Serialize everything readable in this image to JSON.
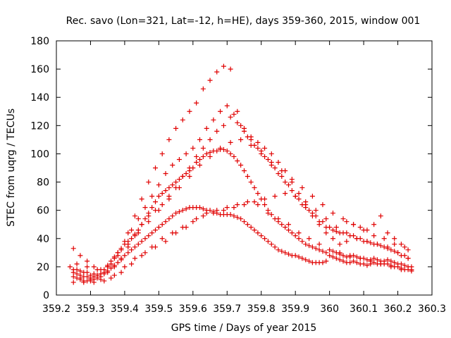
{
  "chart_data": {
    "type": "scatter",
    "title": "Rec. savo (Lon=321, Lat=-12, h=HE), days 359-360, 2015, window 001",
    "xlabel": "GPS time / Days of year 2015",
    "ylabel": "STEC from uqrg / TECUs",
    "xlim": [
      359.2,
      360.3
    ],
    "ylim": [
      0,
      180
    ],
    "xticks": [
      "359.2",
      "359.3",
      "359.4",
      "359.5",
      "359.6",
      "359.7",
      "359.8",
      "359.9",
      "360",
      "360.1",
      "360.2",
      "360.3"
    ],
    "yticks": [
      "0",
      "20",
      "40",
      "60",
      "80",
      "100",
      "120",
      "140",
      "160",
      "180"
    ],
    "grid": false,
    "legend": "none",
    "marker": "+",
    "color": "#e00000",
    "series": [
      {
        "x": [
          359.25,
          359.26,
          359.27,
          359.28,
          359.29,
          359.3,
          359.31,
          359.32,
          359.33,
          359.34,
          359.35,
          359.36,
          359.37,
          359.38,
          359.39,
          359.4,
          359.41,
          359.42,
          359.43,
          359.44,
          359.45,
          359.46,
          359.47,
          359.48,
          359.49,
          359.5,
          359.51,
          359.52,
          359.53,
          359.54,
          359.55,
          359.56,
          359.57,
          359.58,
          359.59,
          359.6,
          359.61,
          359.62,
          359.63,
          359.64,
          359.65,
          359.66,
          359.67,
          359.68,
          359.69,
          359.7,
          359.71,
          359.72,
          359.73,
          359.74,
          359.75,
          359.76,
          359.77,
          359.78,
          359.79,
          359.8,
          359.81,
          359.82,
          359.83,
          359.84,
          359.85,
          359.86,
          359.87,
          359.88,
          359.89,
          359.9,
          359.91,
          359.92,
          359.93,
          359.94,
          359.95,
          359.96,
          359.97,
          359.98,
          359.99,
          360.0,
          360.01,
          360.02,
          360.03,
          360.04,
          360.05,
          360.06,
          360.07,
          360.08,
          360.09,
          360.1,
          360.11,
          360.12,
          360.13,
          360.14,
          360.15,
          360.16,
          360.17,
          360.18,
          360.19,
          360.2,
          360.21,
          360.22,
          360.23,
          360.24
        ],
        "y": [
          13,
          12,
          11,
          10,
          10,
          10,
          11,
          12,
          13,
          15,
          17,
          19,
          21,
          23,
          25,
          28,
          30,
          32,
          34,
          36,
          38,
          40,
          42,
          44,
          46,
          48,
          50,
          52,
          54,
          56,
          58,
          59,
          60,
          61,
          62,
          62,
          62,
          62,
          61,
          60,
          60,
          59,
          58,
          57,
          57,
          57,
          57,
          56,
          55,
          54,
          52,
          50,
          48,
          46,
          44,
          42,
          40,
          38,
          36,
          34,
          32,
          31,
          30,
          29,
          28,
          28,
          27,
          26,
          25,
          24,
          23,
          23,
          23,
          23,
          24,
          28,
          27,
          26,
          25,
          24,
          23,
          23,
          24,
          23,
          22,
          22,
          21,
          22,
          23,
          22,
          22,
          22,
          22,
          21,
          20,
          20,
          19,
          18,
          18,
          18
        ]
      },
      {
        "x": [
          359.25,
          359.26,
          359.27,
          359.28,
          359.29,
          359.3,
          359.31,
          359.32,
          359.33,
          359.34,
          359.35,
          359.36,
          359.37,
          359.38,
          359.39,
          359.4,
          359.41,
          359.42,
          359.43,
          359.44,
          359.45,
          359.46,
          359.47,
          359.48,
          359.49,
          359.5,
          359.51,
          359.52,
          359.53,
          359.54,
          359.55,
          359.56,
          359.57,
          359.58,
          359.59,
          359.6,
          359.61,
          359.62,
          359.63,
          359.64,
          359.65,
          359.66,
          359.67,
          359.68,
          359.69,
          359.7,
          359.71,
          359.72,
          359.73,
          359.74,
          359.75,
          359.76,
          359.77,
          359.78,
          359.79,
          359.8,
          359.81,
          359.82,
          359.83,
          359.84,
          359.85,
          359.86,
          359.87,
          359.88,
          359.89,
          359.9,
          359.91,
          359.92,
          359.93,
          359.94,
          359.95,
          359.96,
          359.97,
          359.98,
          359.99,
          360.01,
          360.02,
          360.03,
          360.04,
          360.05,
          360.06,
          360.07,
          360.08,
          360.09,
          360.1,
          360.11,
          360.12,
          360.13,
          360.14,
          360.15,
          360.16,
          360.17,
          360.18,
          360.19,
          360.2,
          360.21,
          360.22,
          360.23,
          360.24
        ],
        "y": [
          16,
          15,
          14,
          13,
          13,
          12,
          13,
          14,
          15,
          18,
          21,
          24,
          27,
          30,
          33,
          36,
          38,
          40,
          43,
          46,
          50,
          54,
          58,
          62,
          66,
          70,
          72,
          74,
          76,
          78,
          80,
          82,
          84,
          86,
          88,
          90,
          94,
          96,
          98,
          100,
          101,
          102,
          102,
          103,
          103,
          102,
          100,
          98,
          95,
          92,
          88,
          84,
          80,
          76,
          72,
          68,
          64,
          60,
          57,
          54,
          52,
          50,
          48,
          46,
          44,
          42,
          40,
          38,
          36,
          35,
          34,
          33,
          32,
          31,
          30,
          31,
          30,
          29,
          28,
          27,
          27,
          28,
          27,
          26,
          26,
          25,
          25,
          26,
          25,
          24,
          24,
          25,
          24,
          23,
          22,
          22,
          21,
          20,
          20
        ]
      },
      {
        "x": [
          359.25,
          359.27,
          359.29,
          359.31,
          359.33,
          359.35,
          359.37,
          359.39,
          359.41,
          359.43,
          359.45,
          359.47,
          359.49,
          359.51,
          359.53,
          359.55,
          359.57,
          359.59,
          359.61,
          359.63,
          359.65,
          359.67,
          359.69,
          359.71,
          359.73,
          359.75,
          359.77,
          359.79,
          359.81,
          359.83,
          359.85,
          359.87,
          359.89,
          359.91,
          359.93,
          359.95,
          359.97,
          359.99,
          360.01,
          360.03,
          360.05,
          360.07,
          360.09,
          360.11,
          360.13,
          360.15,
          360.17,
          360.19,
          360.21,
          360.23
        ],
        "y": [
          18,
          17,
          16,
          15,
          15,
          16,
          20,
          26,
          34,
          42,
          50,
          56,
          60,
          64,
          70,
          76,
          84,
          90,
          98,
          104,
          110,
          116,
          120,
          126,
          122,
          116,
          110,
          104,
          98,
          92,
          86,
          80,
          74,
          68,
          62,
          56,
          50,
          44,
          40,
          36,
          38,
          42,
          40,
          38,
          36,
          35,
          33,
          31,
          28,
          26
        ]
      },
      {
        "x": [
          359.25,
          359.27,
          359.29,
          359.31,
          359.33,
          359.35,
          359.37,
          359.39,
          359.41,
          359.43,
          359.45,
          359.47,
          359.49,
          359.51,
          359.53,
          359.55,
          359.57,
          359.59,
          359.61,
          359.63,
          359.65,
          359.67,
          359.69,
          359.71,
          359.73,
          359.75,
          359.77,
          359.79,
          359.81,
          359.83,
          359.85,
          359.87,
          359.89,
          359.91,
          359.93,
          359.95,
          359.97,
          359.99,
          360.01,
          360.03,
          360.05,
          360.07,
          360.09,
          360.11,
          360.13,
          360.15,
          360.17,
          360.19,
          360.21,
          360.23
        ],
        "y": [
          33,
          28,
          24,
          20,
          18,
          20,
          26,
          32,
          44,
          56,
          68,
          80,
          90,
          100,
          110,
          118,
          124,
          130,
          136,
          146,
          152,
          158,
          162,
          160,
          130,
          118,
          112,
          108,
          104,
          100,
          94,
          88,
          80,
          72,
          64,
          58,
          52,
          48,
          46,
          44,
          52,
          50,
          48,
          46,
          50,
          56,
          44,
          40,
          36,
          32
        ]
      },
      {
        "x": [
          359.24,
          359.26,
          359.28,
          359.3,
          359.32,
          359.34,
          359.36,
          359.38,
          359.4,
          359.42,
          359.44,
          359.46,
          359.48,
          359.5,
          359.52,
          359.54,
          359.56,
          359.58,
          359.6,
          359.62,
          359.64,
          359.66,
          359.68,
          359.7,
          359.72,
          359.74,
          359.76,
          359.78,
          359.8,
          359.82,
          359.84,
          359.86,
          359.88,
          359.9,
          359.92,
          359.94,
          359.96,
          359.98,
          360.0,
          360.02,
          360.04,
          360.06,
          360.08,
          360.1,
          360.12,
          360.14,
          360.16,
          360.18,
          360.2,
          360.22
        ],
        "y": [
          20,
          18,
          16,
          14,
          14,
          16,
          22,
          30,
          38,
          46,
          54,
          62,
          70,
          78,
          86,
          92,
          96,
          100,
          104,
          110,
          118,
          124,
          130,
          134,
          128,
          120,
          112,
          106,
          102,
          96,
          90,
          84,
          78,
          70,
          64,
          60,
          56,
          52,
          48,
          45,
          44,
          42,
          40,
          38,
          37,
          36,
          34,
          32,
          30,
          28
        ]
      },
      {
        "x": [
          359.25,
          359.28,
          359.31,
          359.34,
          359.37,
          359.4,
          359.43,
          359.46,
          359.49,
          359.52,
          359.55,
          359.58,
          359.61,
          359.64,
          359.67,
          359.7,
          359.73,
          359.76,
          359.79,
          359.82,
          359.85,
          359.88,
          359.91,
          359.94,
          359.97,
          360.0,
          360.03,
          360.06,
          360.09,
          360.12,
          360.15,
          360.18,
          360.21,
          360.24
        ],
        "y": [
          9,
          9,
          9,
          10,
          14,
          20,
          26,
          30,
          34,
          38,
          44,
          48,
          54,
          58,
          60,
          62,
          64,
          66,
          64,
          58,
          54,
          50,
          44,
          40,
          36,
          32,
          30,
          28,
          26,
          24,
          22,
          20,
          18,
          17
        ]
      },
      {
        "x": [
          359.26,
          359.29,
          359.32,
          359.35,
          359.38,
          359.41,
          359.44,
          359.47,
          359.5,
          359.53,
          359.56,
          359.59,
          359.62,
          359.65,
          359.68,
          359.71,
          359.74,
          359.77,
          359.8,
          359.83,
          359.86,
          359.89,
          359.92,
          359.95,
          359.98,
          360.01,
          360.04,
          360.07,
          360.1,
          360.13,
          360.16,
          360.19,
          360.22
        ],
        "y": [
          22,
          20,
          18,
          20,
          28,
          36,
          44,
          52,
          60,
          68,
          76,
          84,
          92,
          98,
          104,
          108,
          110,
          106,
          100,
          94,
          88,
          82,
          76,
          70,
          64,
          58,
          54,
          50,
          46,
          42,
          40,
          36,
          34
        ]
      },
      {
        "x": [
          359.27,
          359.3,
          359.33,
          359.36,
          359.39,
          359.42,
          359.45,
          359.48,
          359.51,
          359.54,
          359.57,
          359.6,
          359.63,
          359.66,
          359.69,
          359.72,
          359.75,
          359.78,
          359.81,
          359.84,
          359.87,
          359.9,
          359.93,
          359.96,
          359.99,
          360.02,
          360.05,
          360.08,
          360.11,
          360.14,
          360.17,
          360.2,
          360.23
        ],
        "y": [
          12,
          11,
          11,
          12,
          16,
          22,
          28,
          34,
          40,
          44,
          48,
          52,
          56,
          58,
          60,
          62,
          64,
          66,
          68,
          70,
          72,
          70,
          66,
          60,
          54,
          48,
          44,
          40,
          38,
          36,
          34,
          30,
          26
        ]
      }
    ]
  }
}
